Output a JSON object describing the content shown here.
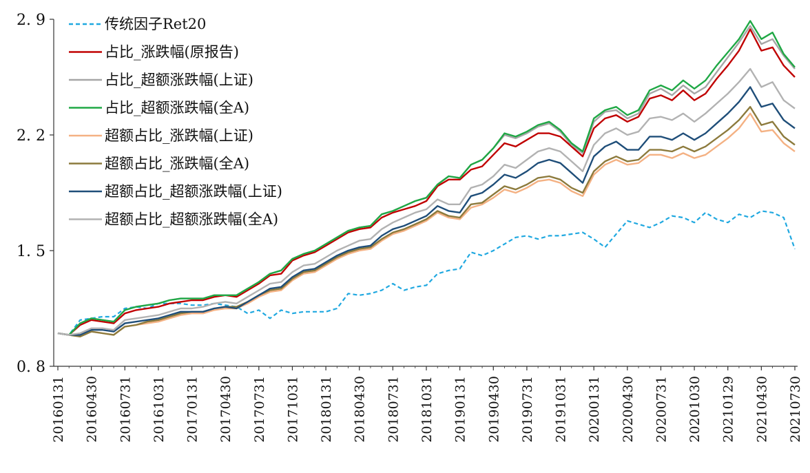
{
  "chart_data": {
    "type": "line",
    "title": "",
    "xlabel": "",
    "ylabel": "",
    "ylim": [
      0.8,
      2.9
    ],
    "yticks": [
      "0. 8",
      "1. 5",
      "2. 2",
      "2. 9"
    ],
    "ytick_values": [
      0.8,
      1.5,
      2.2,
      2.9
    ],
    "xtick_labels": [
      "20160131",
      "20160430",
      "20160731",
      "20161031",
      "20170131",
      "20170430",
      "20170731",
      "20171031",
      "20180131",
      "20180430",
      "20180731",
      "20181031",
      "20190131",
      "20190430",
      "20190731",
      "20191031",
      "20200131",
      "20200430",
      "20200731",
      "20201030",
      "20210129",
      "20210430",
      "20210730"
    ],
    "legend_position": "top-left",
    "x_count": 67,
    "series": [
      {
        "name": "传统因子Ret20",
        "color": "#1fa8e0",
        "dashed": true,
        "values": [
          1.0,
          0.99,
          1.08,
          1.09,
          1.1,
          1.1,
          1.15,
          1.16,
          1.15,
          1.18,
          1.18,
          1.18,
          1.17,
          1.17,
          1.18,
          1.17,
          1.16,
          1.12,
          1.14,
          1.09,
          1.14,
          1.12,
          1.13,
          1.13,
          1.13,
          1.15,
          1.24,
          1.23,
          1.24,
          1.26,
          1.3,
          1.26,
          1.28,
          1.29,
          1.36,
          1.38,
          1.39,
          1.49,
          1.47,
          1.5,
          1.54,
          1.58,
          1.59,
          1.57,
          1.59,
          1.59,
          1.6,
          1.61,
          1.57,
          1.52,
          1.6,
          1.68,
          1.66,
          1.64,
          1.67,
          1.71,
          1.7,
          1.67,
          1.73,
          1.69,
          1.67,
          1.72,
          1.7,
          1.74,
          1.73,
          1.7,
          1.51
        ]
      },
      {
        "name": "占比_涨跌幅(原报告)",
        "color": "#c00000",
        "dashed": false,
        "values": [
          1.0,
          0.99,
          1.05,
          1.08,
          1.07,
          1.06,
          1.12,
          1.14,
          1.15,
          1.16,
          1.18,
          1.19,
          1.2,
          1.2,
          1.22,
          1.23,
          1.22,
          1.26,
          1.3,
          1.35,
          1.36,
          1.44,
          1.47,
          1.49,
          1.53,
          1.57,
          1.61,
          1.63,
          1.64,
          1.7,
          1.73,
          1.75,
          1.77,
          1.8,
          1.89,
          1.93,
          1.93,
          1.99,
          2.01,
          2.08,
          2.15,
          2.13,
          2.17,
          2.21,
          2.21,
          2.19,
          2.13,
          2.07,
          2.24,
          2.3,
          2.32,
          2.28,
          2.31,
          2.42,
          2.44,
          2.41,
          2.47,
          2.41,
          2.45,
          2.54,
          2.62,
          2.71,
          2.84,
          2.71,
          2.73,
          2.62,
          2.55
        ]
      },
      {
        "name": "占比_超额涨跌幅(上证)",
        "color": "#a6a6a6",
        "dashed": false,
        "values": [
          1.0,
          0.99,
          1.06,
          1.09,
          1.08,
          1.07,
          1.14,
          1.16,
          1.17,
          1.18,
          1.2,
          1.21,
          1.21,
          1.21,
          1.23,
          1.23,
          1.23,
          1.27,
          1.31,
          1.36,
          1.38,
          1.45,
          1.48,
          1.5,
          1.54,
          1.58,
          1.62,
          1.64,
          1.65,
          1.72,
          1.74,
          1.77,
          1.8,
          1.82,
          1.9,
          1.95,
          1.94,
          2.02,
          2.05,
          2.12,
          2.2,
          2.18,
          2.21,
          2.25,
          2.27,
          2.22,
          2.14,
          2.09,
          2.28,
          2.34,
          2.35,
          2.3,
          2.33,
          2.45,
          2.48,
          2.44,
          2.5,
          2.45,
          2.49,
          2.58,
          2.67,
          2.76,
          2.86,
          2.75,
          2.78,
          2.68,
          2.6
        ]
      },
      {
        "name": "占比_超额涨跌幅(全A)",
        "color": "#1fa845",
        "dashed": false,
        "values": [
          1.0,
          0.99,
          1.06,
          1.09,
          1.08,
          1.07,
          1.14,
          1.16,
          1.17,
          1.18,
          1.2,
          1.21,
          1.21,
          1.21,
          1.23,
          1.23,
          1.23,
          1.27,
          1.31,
          1.36,
          1.38,
          1.45,
          1.48,
          1.5,
          1.54,
          1.58,
          1.62,
          1.64,
          1.65,
          1.72,
          1.74,
          1.77,
          1.8,
          1.82,
          1.9,
          1.95,
          1.94,
          2.02,
          2.05,
          2.12,
          2.21,
          2.19,
          2.22,
          2.26,
          2.28,
          2.23,
          2.15,
          2.1,
          2.3,
          2.35,
          2.37,
          2.32,
          2.35,
          2.47,
          2.5,
          2.47,
          2.53,
          2.48,
          2.53,
          2.62,
          2.7,
          2.78,
          2.89,
          2.78,
          2.82,
          2.69,
          2.61
        ]
      },
      {
        "name": "超额占比_涨跌幅(上证)",
        "color": "#f4b183",
        "dashed": false,
        "values": [
          1.0,
          0.99,
          0.98,
          1.01,
          1.0,
          0.99,
          1.04,
          1.05,
          1.06,
          1.07,
          1.09,
          1.11,
          1.12,
          1.12,
          1.14,
          1.15,
          1.15,
          1.18,
          1.22,
          1.25,
          1.26,
          1.32,
          1.36,
          1.37,
          1.41,
          1.45,
          1.48,
          1.5,
          1.51,
          1.56,
          1.6,
          1.62,
          1.65,
          1.68,
          1.73,
          1.7,
          1.69,
          1.76,
          1.78,
          1.82,
          1.87,
          1.85,
          1.88,
          1.92,
          1.93,
          1.91,
          1.86,
          1.83,
          1.96,
          2.02,
          2.05,
          2.02,
          2.03,
          2.08,
          2.08,
          2.06,
          2.09,
          2.06,
          2.08,
          2.13,
          2.18,
          2.24,
          2.33,
          2.22,
          2.23,
          2.15,
          2.1
        ]
      },
      {
        "name": "超额占比_涨跌幅(全A)",
        "color": "#8c7a3c",
        "dashed": false,
        "values": [
          1.0,
          0.99,
          0.98,
          1.01,
          1.0,
          0.99,
          1.04,
          1.05,
          1.07,
          1.08,
          1.1,
          1.12,
          1.13,
          1.13,
          1.15,
          1.16,
          1.16,
          1.19,
          1.23,
          1.26,
          1.27,
          1.33,
          1.37,
          1.38,
          1.42,
          1.46,
          1.49,
          1.51,
          1.52,
          1.57,
          1.61,
          1.63,
          1.66,
          1.69,
          1.74,
          1.71,
          1.7,
          1.78,
          1.79,
          1.84,
          1.89,
          1.87,
          1.9,
          1.94,
          1.95,
          1.93,
          1.88,
          1.85,
          1.98,
          2.04,
          2.07,
          2.04,
          2.05,
          2.11,
          2.11,
          2.1,
          2.13,
          2.1,
          2.13,
          2.18,
          2.23,
          2.29,
          2.37,
          2.26,
          2.28,
          2.19,
          2.14
        ]
      },
      {
        "name": "超额占比_超额涨跌幅(上证)",
        "color": "#1f4e79",
        "dashed": false,
        "values": [
          1.0,
          0.99,
          0.99,
          1.02,
          1.02,
          1.01,
          1.06,
          1.07,
          1.08,
          1.09,
          1.11,
          1.13,
          1.13,
          1.13,
          1.15,
          1.16,
          1.15,
          1.19,
          1.23,
          1.27,
          1.28,
          1.34,
          1.38,
          1.39,
          1.43,
          1.47,
          1.5,
          1.52,
          1.53,
          1.59,
          1.63,
          1.65,
          1.68,
          1.71,
          1.77,
          1.74,
          1.73,
          1.83,
          1.85,
          1.9,
          1.96,
          1.94,
          1.98,
          2.03,
          2.05,
          2.03,
          1.97,
          1.91,
          2.07,
          2.13,
          2.16,
          2.11,
          2.11,
          2.19,
          2.19,
          2.17,
          2.21,
          2.17,
          2.21,
          2.27,
          2.33,
          2.4,
          2.49,
          2.37,
          2.39,
          2.29,
          2.24
        ]
      },
      {
        "name": "超额占比_超额涨跌幅(全A)",
        "color": "#b2b2b2",
        "dashed": false,
        "values": [
          1.0,
          0.99,
          1.0,
          1.03,
          1.03,
          1.02,
          1.08,
          1.09,
          1.1,
          1.11,
          1.13,
          1.15,
          1.15,
          1.16,
          1.18,
          1.19,
          1.18,
          1.22,
          1.26,
          1.3,
          1.31,
          1.37,
          1.41,
          1.42,
          1.46,
          1.5,
          1.53,
          1.56,
          1.57,
          1.63,
          1.67,
          1.7,
          1.73,
          1.75,
          1.81,
          1.78,
          1.78,
          1.88,
          1.9,
          1.95,
          2.02,
          2.0,
          2.05,
          2.1,
          2.12,
          2.1,
          2.04,
          1.98,
          2.14,
          2.21,
          2.24,
          2.2,
          2.22,
          2.3,
          2.31,
          2.29,
          2.33,
          2.28,
          2.33,
          2.39,
          2.45,
          2.52,
          2.6,
          2.49,
          2.52,
          2.41,
          2.36
        ]
      }
    ]
  }
}
